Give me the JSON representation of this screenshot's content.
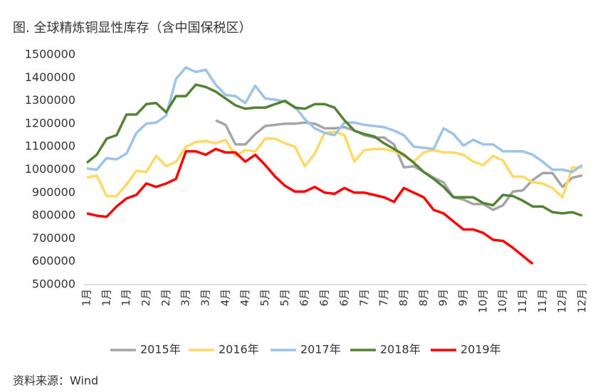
{
  "chart_data": {
    "type": "line",
    "title": "图. 全球精炼铜显性库存（含中国保税区）",
    "source": "资料来源：Wind",
    "categories": [
      "1月",
      null,
      "1月",
      null,
      "1月",
      null,
      "2月",
      null,
      "2月",
      null,
      "3月",
      null,
      "3月",
      null,
      "4月",
      null,
      "4月",
      null,
      "5月",
      null,
      "5月",
      null,
      "6月",
      null,
      "6月",
      null,
      "6月",
      null,
      "7月",
      null,
      "7月",
      null,
      "8月",
      null,
      "8月",
      null,
      "9月",
      null,
      "9月",
      null,
      "10月",
      null,
      "10月",
      null,
      "11月",
      null,
      "11月",
      null,
      "12月",
      null,
      "12月"
    ],
    "ylim": [
      500000,
      1500000
    ],
    "yticks": [
      500000,
      600000,
      700000,
      800000,
      900000,
      1000000,
      1100000,
      1200000,
      1300000,
      1400000,
      1500000
    ],
    "grid": false,
    "legend": "bottom",
    "series": [
      {
        "name": "2015年",
        "color": "#a5a5a5",
        "values": [
          null,
          null,
          null,
          null,
          null,
          null,
          null,
          null,
          null,
          null,
          null,
          null,
          null,
          1215000,
          1195000,
          1110000,
          1110000,
          1155000,
          1190000,
          1195000,
          1200000,
          1200000,
          1205000,
          1200000,
          1180000,
          1180000,
          1185000,
          1170000,
          1150000,
          1140000,
          1140000,
          1110000,
          1010000,
          1015000,
          990000,
          965000,
          945000,
          880000,
          870000,
          850000,
          850000,
          825000,
          845000,
          905000,
          910000,
          955000,
          985000,
          985000,
          925000,
          965000,
          975000
        ]
      },
      {
        "name": "2016年",
        "color": "#ffd966",
        "values": [
          965000,
          975000,
          885000,
          885000,
          935000,
          995000,
          990000,
          1060000,
          1015000,
          1035000,
          1100000,
          1120000,
          1125000,
          1115000,
          1130000,
          1060000,
          1085000,
          1080000,
          1135000,
          1135000,
          1115000,
          1100000,
          1015000,
          1070000,
          1160000,
          1165000,
          1150000,
          1035000,
          1085000,
          1090000,
          1090000,
          1080000,
          1060000,
          1035000,
          1075000,
          1085000,
          1075000,
          1075000,
          1065000,
          1035000,
          1020000,
          1060000,
          1040000,
          970000,
          970000,
          945000,
          940000,
          920000,
          880000,
          1010000,
          1010000
        ]
      },
      {
        "name": "2017年",
        "color": "#9dc3e6",
        "values": [
          1005000,
          1000000,
          1050000,
          1045000,
          1070000,
          1160000,
          1200000,
          1205000,
          1235000,
          1395000,
          1445000,
          1425000,
          1435000,
          1370000,
          1325000,
          1320000,
          1290000,
          1365000,
          1310000,
          1305000,
          1295000,
          1275000,
          1220000,
          1180000,
          1160000,
          1150000,
          1205000,
          1205000,
          1195000,
          1190000,
          1185000,
          1170000,
          1150000,
          1100000,
          1095000,
          1090000,
          1180000,
          1155000,
          1105000,
          1130000,
          1110000,
          1110000,
          1080000,
          1080000,
          1080000,
          1065000,
          1035000,
          1000000,
          1000000,
          990000,
          1020000
        ]
      },
      {
        "name": "2018年",
        "color": "#548235",
        "values": [
          1030000,
          1065000,
          1135000,
          1150000,
          1240000,
          1240000,
          1285000,
          1290000,
          1250000,
          1320000,
          1320000,
          1370000,
          1360000,
          1340000,
          1310000,
          1280000,
          1265000,
          1270000,
          1270000,
          1285000,
          1300000,
          1270000,
          1265000,
          1285000,
          1285000,
          1270000,
          1215000,
          1170000,
          1155000,
          1145000,
          1115000,
          1090000,
          1065000,
          1030000,
          990000,
          960000,
          925000,
          880000,
          880000,
          880000,
          855000,
          845000,
          890000,
          885000,
          865000,
          840000,
          840000,
          815000,
          810000,
          815000,
          800000
        ]
      },
      {
        "name": "2019年",
        "color": "#ff0000",
        "values": [
          810000,
          800000,
          795000,
          840000,
          875000,
          890000,
          940000,
          925000,
          940000,
          960000,
          1080000,
          1080000,
          1065000,
          1090000,
          1075000,
          1075000,
          1035000,
          1065000,
          1020000,
          970000,
          930000,
          905000,
          905000,
          925000,
          900000,
          895000,
          920000,
          900000,
          900000,
          890000,
          880000,
          860000,
          920000,
          900000,
          880000,
          825000,
          810000,
          775000,
          740000,
          740000,
          725000,
          695000,
          690000,
          660000,
          625000,
          590000,
          null,
          null,
          null,
          null,
          null
        ]
      }
    ]
  }
}
